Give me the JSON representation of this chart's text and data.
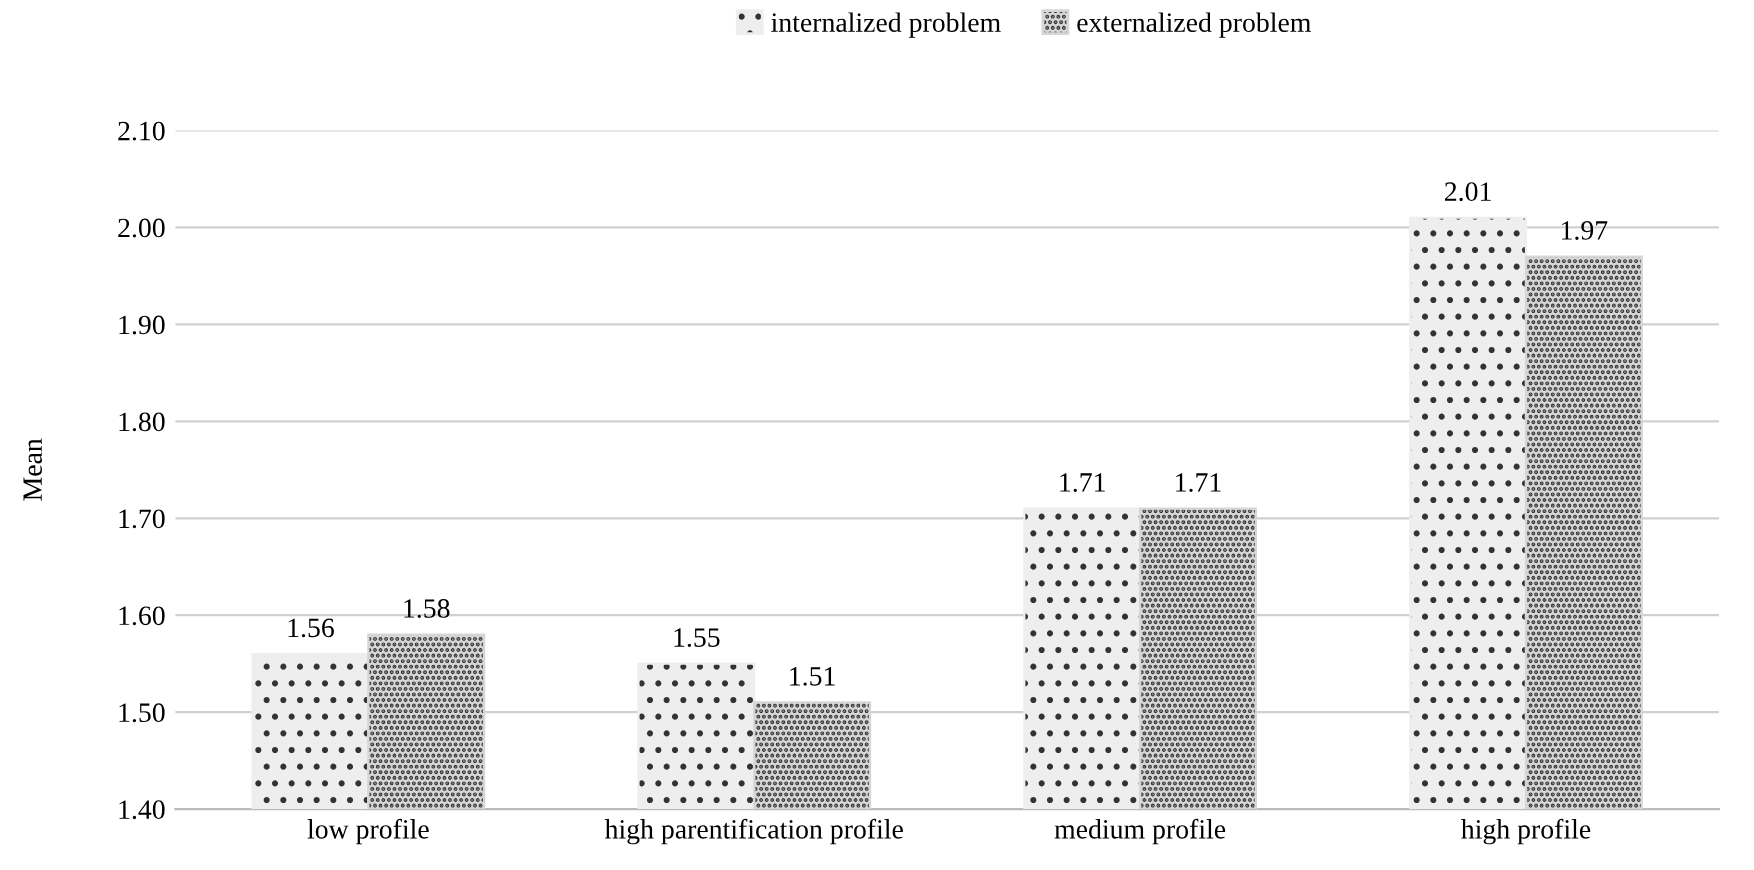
{
  "chart_data": {
    "type": "bar",
    "ylabel": "Mean",
    "categories": [
      "low profile",
      "high parentification profile",
      "medium profile",
      "high profile"
    ],
    "series": [
      {
        "name": "internalized problem",
        "color": "#eeeeee",
        "values": [
          1.56,
          1.55,
          1.71,
          2.01
        ]
      },
      {
        "name": "externalized problem",
        "color": "#d6d6d6",
        "values": [
          1.58,
          1.51,
          1.71,
          1.97
        ]
      }
    ],
    "ylim": [
      1.4,
      2.1
    ],
    "yticks": [
      {
        "value": 1.4,
        "label": "1.40"
      },
      {
        "value": 1.5,
        "label": "1.50"
      },
      {
        "value": 1.6,
        "label": "1.60"
      },
      {
        "value": 1.7,
        "label": "1.70"
      },
      {
        "value": 1.8,
        "label": "1.80"
      },
      {
        "value": 1.9,
        "label": "1.90"
      },
      {
        "value": 2.0,
        "label": "2.00"
      },
      {
        "value": 2.1,
        "label": "2.10"
      }
    ],
    "grid": "y",
    "legend": "top",
    "data_labels": true
  }
}
